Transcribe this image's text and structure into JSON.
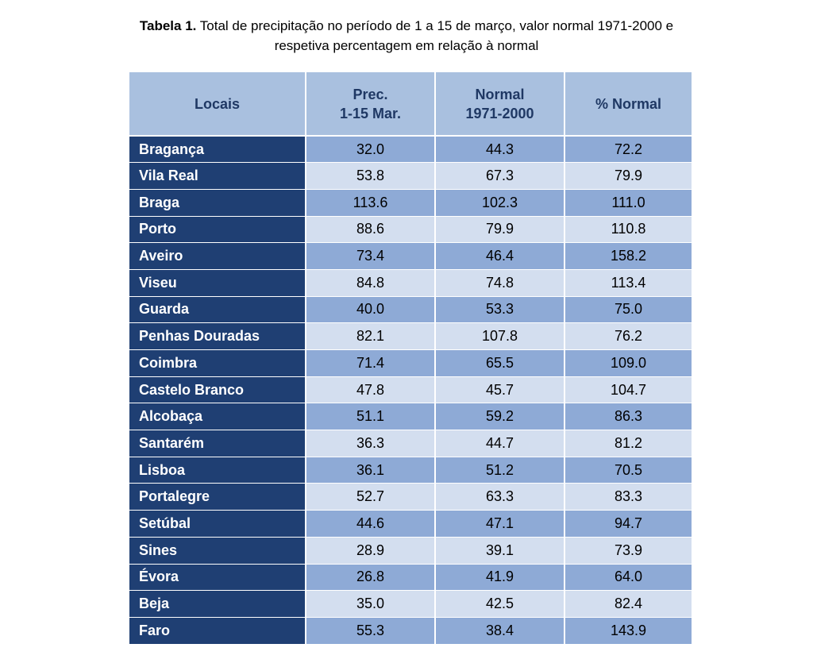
{
  "caption": {
    "label": "Tabela 1.",
    "line1": "Total de precipitação no período de 1 a 15 de março, valor normal 1971-2000 e",
    "line2": "respetiva percentagem em relação à normal"
  },
  "table": {
    "headers": {
      "locais": "Locais",
      "prec_line1": "Prec.",
      "prec_line2": "1-15 Mar.",
      "normal_line1": "Normal",
      "normal_line2": "1971-2000",
      "pct": "% Normal"
    },
    "rows": [
      {
        "local": "Bragança",
        "prec": "32.0",
        "normal": "44.3",
        "pct": "72.2"
      },
      {
        "local": "Vila Real",
        "prec": "53.8",
        "normal": "67.3",
        "pct": "79.9"
      },
      {
        "local": "Braga",
        "prec": "113.6",
        "normal": "102.3",
        "pct": "111.0"
      },
      {
        "local": "Porto",
        "prec": "88.6",
        "normal": "79.9",
        "pct": "110.8"
      },
      {
        "local": "Aveiro",
        "prec": "73.4",
        "normal": "46.4",
        "pct": "158.2"
      },
      {
        "local": "Viseu",
        "prec": "84.8",
        "normal": "74.8",
        "pct": "113.4"
      },
      {
        "local": "Guarda",
        "prec": "40.0",
        "normal": "53.3",
        "pct": "75.0"
      },
      {
        "local": "Penhas Douradas",
        "prec": "82.1",
        "normal": "107.8",
        "pct": "76.2"
      },
      {
        "local": "Coimbra",
        "prec": "71.4",
        "normal": "65.5",
        "pct": "109.0"
      },
      {
        "local": "Castelo Branco",
        "prec": "47.8",
        "normal": "45.7",
        "pct": "104.7"
      },
      {
        "local": "Alcobaça",
        "prec": "51.1",
        "normal": "59.2",
        "pct": "86.3"
      },
      {
        "local": "Santarém",
        "prec": "36.3",
        "normal": "44.7",
        "pct": "81.2"
      },
      {
        "local": "Lisboa",
        "prec": "36.1",
        "normal": "51.2",
        "pct": "70.5"
      },
      {
        "local": "Portalegre",
        "prec": "52.7",
        "normal": "63.3",
        "pct": "83.3"
      },
      {
        "local": "Setúbal",
        "prec": "44.6",
        "normal": "47.1",
        "pct": "94.7"
      },
      {
        "local": "Sines",
        "prec": "28.9",
        "normal": "39.1",
        "pct": "73.9"
      },
      {
        "local": "Évora",
        "prec": "26.8",
        "normal": "41.9",
        "pct": "64.0"
      },
      {
        "local": "Beja",
        "prec": "35.0",
        "normal": "42.5",
        "pct": "82.4"
      },
      {
        "local": "Faro",
        "prec": "55.3",
        "normal": "38.4",
        "pct": "143.9"
      }
    ]
  },
  "colors": {
    "header_bg": "#a9c0df",
    "header_text": "#1f3864",
    "location_bg": "#1f3f73",
    "row_dark": "#8eaad6",
    "row_light": "#d3deef"
  }
}
